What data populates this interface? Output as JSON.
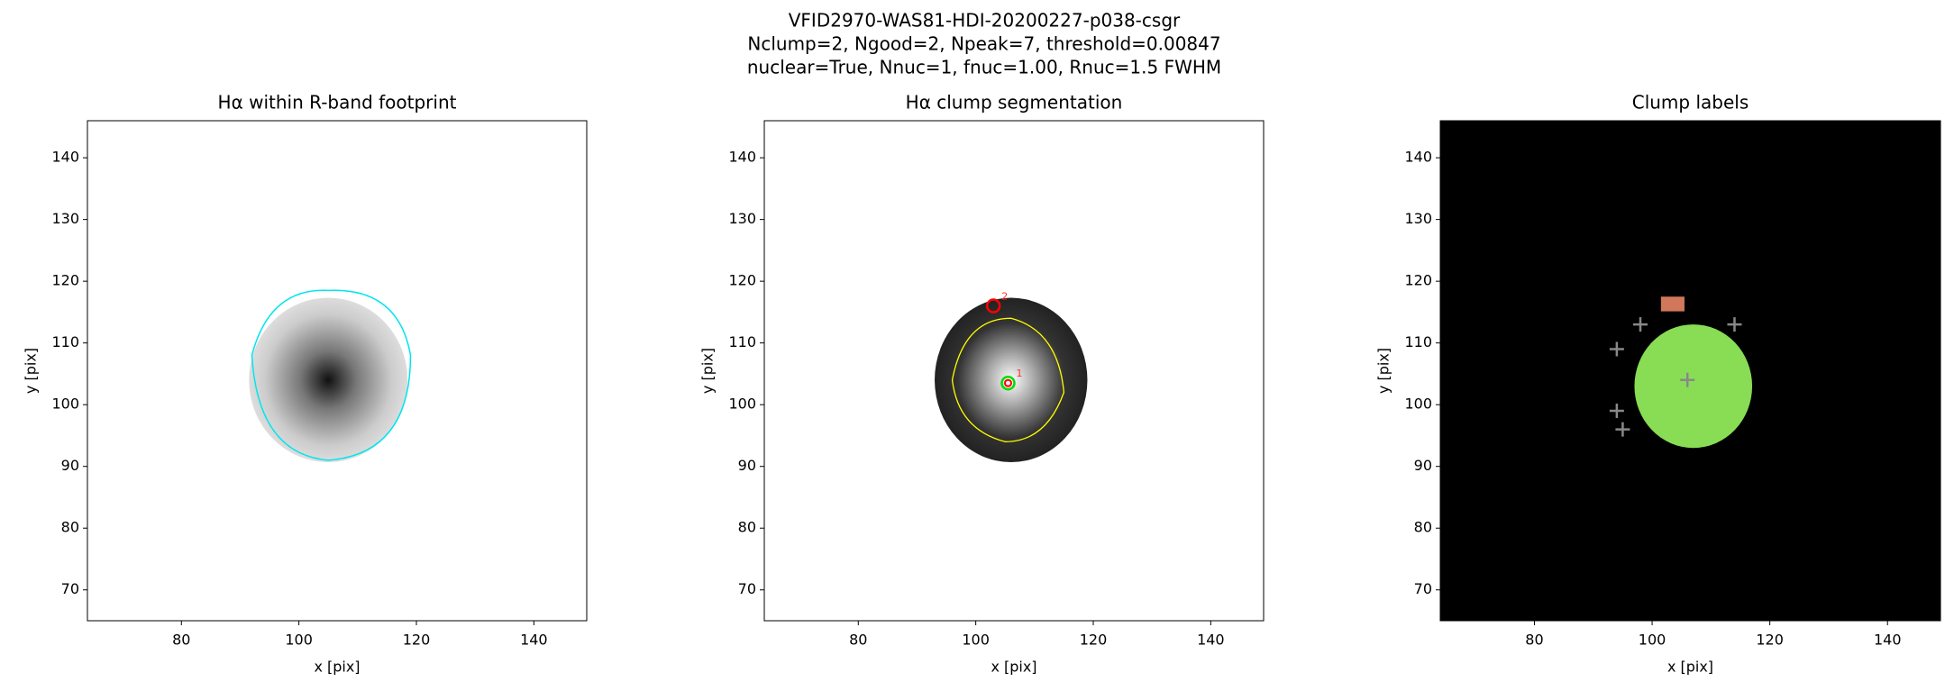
{
  "suptitle": [
    "VFID2970-WAS81-HDI-20200227-p038-csgr",
    "Nclump=2, Ngood=2, Npeak=7, threshold=0.00847",
    "nuclear=True, Nnuc=1, fnuc=1.00, Rnuc=1.5 FWHM"
  ],
  "chart_data": [
    {
      "type": "image",
      "title": "Hα within R-band footprint",
      "xlabel": "x [pix]",
      "ylabel": "y [pix]",
      "xlim": [
        64,
        149
      ],
      "ylim": [
        65,
        146
      ],
      "xticks": [
        80,
        100,
        120,
        140
      ],
      "yticks": [
        70,
        80,
        90,
        100,
        110,
        120,
        130,
        140
      ]
    },
    {
      "type": "image",
      "title": "Hα clump segmentation",
      "xlabel": "x [pix]",
      "ylabel": "y [pix]",
      "xlim": [
        64,
        149
      ],
      "ylim": [
        65,
        146
      ],
      "xticks": [
        80,
        100,
        120,
        140
      ],
      "yticks": [
        70,
        80,
        90,
        100,
        110,
        120,
        130,
        140
      ],
      "markers": {
        "x": [
          105.5,
          103
        ],
        "y": [
          103.5,
          116
        ],
        "labels": [
          "1",
          "2"
        ]
      }
    },
    {
      "type": "image",
      "title": "Clump labels",
      "xlabel": "x [pix]",
      "ylabel": "y [pix]",
      "xlim": [
        64,
        149
      ],
      "ylim": [
        65,
        146
      ],
      "xticks": [
        80,
        100,
        120,
        140
      ],
      "yticks": [
        70,
        80,
        90,
        100,
        110,
        120,
        130,
        140
      ],
      "markers": {
        "x": [
          94,
          98,
          114,
          94,
          95,
          106
        ],
        "y": [
          109,
          113,
          113,
          99,
          96,
          104
        ]
      }
    }
  ]
}
